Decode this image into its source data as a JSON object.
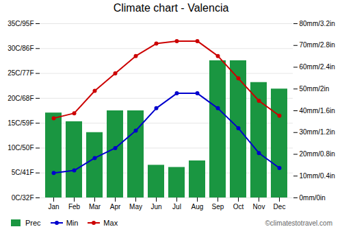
{
  "chart_data": {
    "type": "bar",
    "title": "Climate chart - Valencia",
    "categories": [
      "Jan",
      "Feb",
      "Mar",
      "Apr",
      "May",
      "Jun",
      "Jul",
      "Aug",
      "Sep",
      "Oct",
      "Nov",
      "Dec"
    ],
    "series": [
      {
        "name": "Prec",
        "type": "bar",
        "axis": "y2",
        "color": "#1a9641",
        "values": [
          39,
          35,
          30,
          40,
          40,
          15,
          14,
          17,
          63,
          63,
          53,
          50
        ]
      },
      {
        "name": "Min",
        "type": "line",
        "color": "#0000cd",
        "marker": "circle",
        "values": [
          5,
          5.5,
          8,
          10,
          13.5,
          18,
          21,
          21,
          18,
          14,
          9,
          6
        ]
      },
      {
        "name": "Max",
        "type": "line",
        "color": "#cc0000",
        "marker": "circle",
        "values": [
          16,
          17,
          21.5,
          25,
          28.5,
          31,
          31.5,
          31.5,
          28.5,
          24,
          19.5,
          16.5
        ]
      }
    ],
    "ylim": [
      0,
      35
    ],
    "yticks": [
      {
        "value": 0,
        "label": "0C/32F"
      },
      {
        "value": 5,
        "label": "5C/41F"
      },
      {
        "value": 10,
        "label": "10C/50F"
      },
      {
        "value": 15,
        "label": "15C/59F"
      },
      {
        "value": 20,
        "label": "20C/68F"
      },
      {
        "value": 25,
        "label": "25C/77F"
      },
      {
        "value": 30,
        "label": "30C/86F"
      },
      {
        "value": 35,
        "label": "35C/95F"
      }
    ],
    "y2lim": [
      0,
      80
    ],
    "y2ticks": [
      {
        "value": 0,
        "label": "0mm/0in"
      },
      {
        "value": 10,
        "label": "10mm/0.4in"
      },
      {
        "value": 20,
        "label": "20mm/0.8in"
      },
      {
        "value": 30,
        "label": "30mm/1.2in"
      },
      {
        "value": 40,
        "label": "40mm/1.6in"
      },
      {
        "value": 50,
        "label": "50mm/2in"
      },
      {
        "value": 60,
        "label": "60mm/2.4in"
      },
      {
        "value": 70,
        "label": "70mm/2.8in"
      },
      {
        "value": 80,
        "label": "80mm/3.2in"
      }
    ],
    "grid": true,
    "legend": "lower left",
    "annotations": [
      "©climatestotravel.com"
    ]
  }
}
